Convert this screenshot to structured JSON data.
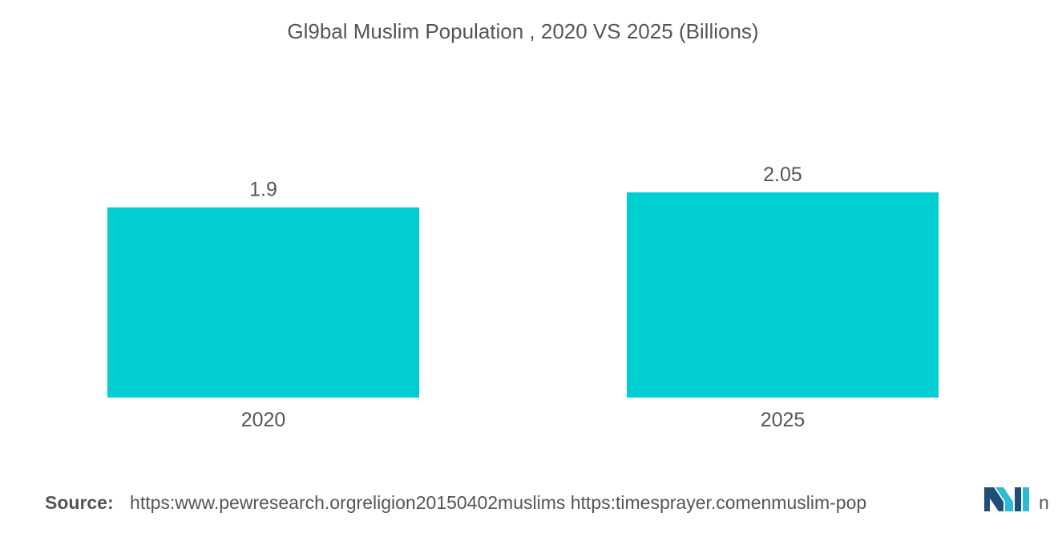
{
  "chart_data": {
    "type": "bar",
    "title": "Gl9bal Muslim Population , 2020 VS 2025 (Billions)",
    "categories": [
      "2020",
      "2025"
    ],
    "values": [
      1.9,
      2.05
    ],
    "value_labels": [
      "1.9",
      "2.05"
    ],
    "xlabel": "",
    "ylabel": "",
    "ylim": [
      0,
      2.05
    ],
    "grid": false,
    "legend": "none",
    "bar_color": "#00CED1"
  },
  "source": {
    "label": "Source:",
    "text": "https:www.pewresearch.orgreligion20150402muslims https:timesprayer.comenmuslim-pop",
    "tail": "n"
  },
  "logo": {
    "icon": "mordor-intelligence-logo",
    "colors": [
      "#1F4E79",
      "#2BBCD4"
    ]
  }
}
